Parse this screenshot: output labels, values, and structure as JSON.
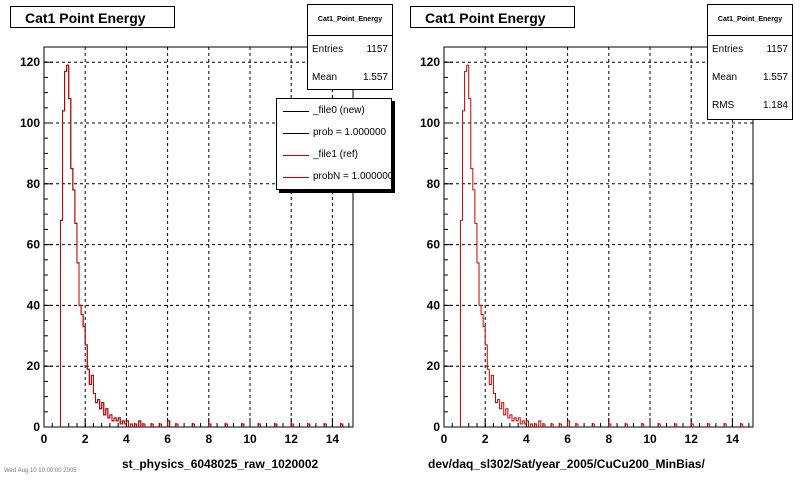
{
  "panels": [
    {
      "title": "Cat1 Point Energy",
      "stats": {
        "name": "Cat1_Point_Energy",
        "rows": [
          {
            "label": "Entries",
            "value": "1157"
          },
          {
            "label": "Mean",
            "value": "1.557"
          }
        ]
      },
      "legend": [
        {
          "label": "_file0 (new)",
          "color": "#000000"
        },
        {
          "label": "prob = 1.000000",
          "color": "#000000"
        },
        {
          "label": "_file1 (ref)",
          "color": "#cc0000"
        },
        {
          "label": "probN = 1.000000",
          "color": "#cc0000"
        }
      ],
      "xtitle": "st_physics_6048025_raw_1020002"
    },
    {
      "title": "Cat1 Point Energy",
      "stats": {
        "name": "Cat1_Point_Energy",
        "rows": [
          {
            "label": "Entries",
            "value": "1157"
          },
          {
            "label": "Mean",
            "value": "1.557"
          },
          {
            "label": "RMS",
            "value": "1.184"
          }
        ]
      },
      "xtitle": "dev/daq_sl302/Sat/year_2005/CuCu200_MinBias/"
    }
  ],
  "footer_text": "Wed Aug 10 10:00:00 2005",
  "chart_data": [
    {
      "type": "bar",
      "title": "Cat1 Point Energy",
      "xlabel": "st_physics_6048025_raw_1020002",
      "ylabel": "",
      "xlim": [
        0,
        15
      ],
      "ylim": [
        0,
        125
      ],
      "xticks": [
        0,
        2,
        4,
        6,
        8,
        10,
        12,
        14
      ],
      "yticks": [
        0,
        20,
        40,
        60,
        80,
        100,
        120
      ],
      "grid": true,
      "bin_width": 0.1,
      "series": [
        {
          "name": "_file0 (new)",
          "color": "#000000",
          "x": [
            0.8,
            0.9,
            1.0,
            1.1,
            1.2,
            1.3,
            1.4,
            1.5,
            1.6,
            1.7,
            1.8,
            1.9,
            2.0,
            2.1,
            2.2,
            2.3,
            2.4,
            2.5,
            2.6,
            2.7,
            2.8,
            2.9,
            3.0,
            3.1,
            3.2,
            3.3,
            3.4,
            3.5,
            3.6,
            3.7,
            3.8,
            3.9,
            4.0,
            4.2,
            4.4,
            4.6,
            4.8,
            5.2,
            5.6,
            6.0,
            6.4,
            7.2,
            8.0,
            8.8,
            9.6,
            10.4,
            11.2,
            12.0,
            12.8,
            13.6,
            14.4
          ],
          "values": [
            68,
            104,
            117,
            119,
            108,
            85,
            78,
            67,
            54,
            40,
            37,
            33,
            27,
            19,
            14,
            17,
            11,
            8,
            9,
            6,
            8,
            4,
            6,
            3,
            4,
            2,
            3,
            2,
            3,
            1,
            2,
            1,
            2,
            1,
            1,
            2,
            1,
            1,
            1,
            2,
            1,
            1,
            1,
            1,
            1,
            1,
            1,
            1,
            1,
            1,
            1
          ]
        },
        {
          "name": "_file1 (ref)",
          "color": "#cc0000",
          "x": [
            0.8,
            0.9,
            1.0,
            1.1,
            1.2,
            1.3,
            1.4,
            1.5,
            1.6,
            1.7,
            1.8,
            1.9,
            2.0,
            2.1,
            2.2,
            2.3,
            2.4,
            2.5,
            2.6,
            2.7,
            2.8,
            2.9,
            3.0,
            3.1,
            3.2,
            3.3,
            3.4,
            3.5,
            3.6,
            3.7,
            3.8,
            3.9,
            4.0,
            4.2,
            4.4,
            4.6,
            4.8,
            5.2,
            5.6,
            6.0,
            6.4,
            7.2,
            8.0,
            8.8,
            9.6,
            10.4,
            11.2,
            12.0,
            12.8,
            13.6,
            14.4
          ],
          "values": [
            68,
            104,
            117,
            119,
            108,
            85,
            78,
            67,
            54,
            40,
            37,
            33,
            27,
            19,
            14,
            17,
            11,
            8,
            9,
            6,
            8,
            4,
            6,
            3,
            4,
            2,
            3,
            2,
            3,
            1,
            2,
            1,
            2,
            1,
            1,
            2,
            1,
            1,
            1,
            2,
            1,
            1,
            1,
            1,
            1,
            1,
            1,
            1,
            1,
            1,
            1
          ]
        }
      ]
    },
    {
      "type": "bar",
      "title": "Cat1 Point Energy",
      "xlabel": "dev/daq_sl302/Sat/year_2005/CuCu200_MinBias/",
      "ylabel": "",
      "xlim": [
        0,
        15
      ],
      "ylim": [
        0,
        125
      ],
      "xticks": [
        0,
        2,
        4,
        6,
        8,
        10,
        12,
        14
      ],
      "yticks": [
        0,
        20,
        40,
        60,
        80,
        100,
        120
      ],
      "grid": true,
      "bin_width": 0.1,
      "series": [
        {
          "name": "",
          "color": "#cc0000",
          "x": [
            0.8,
            0.9,
            1.0,
            1.1,
            1.2,
            1.3,
            1.4,
            1.5,
            1.6,
            1.7,
            1.8,
            1.9,
            2.0,
            2.1,
            2.2,
            2.3,
            2.4,
            2.5,
            2.6,
            2.7,
            2.8,
            2.9,
            3.0,
            3.1,
            3.2,
            3.3,
            3.4,
            3.5,
            3.6,
            3.7,
            3.8,
            3.9,
            4.0,
            4.2,
            4.4,
            4.6,
            4.8,
            5.2,
            5.6,
            6.0,
            6.4,
            7.2,
            8.0,
            8.8,
            9.6,
            10.4,
            11.2,
            12.0,
            12.8,
            13.6,
            14.4
          ],
          "values": [
            68,
            104,
            117,
            119,
            108,
            85,
            78,
            67,
            54,
            40,
            37,
            33,
            27,
            19,
            14,
            17,
            11,
            8,
            9,
            6,
            8,
            4,
            6,
            3,
            4,
            2,
            3,
            2,
            3,
            1,
            2,
            1,
            2,
            1,
            1,
            2,
            1,
            1,
            1,
            2,
            1,
            1,
            1,
            1,
            1,
            1,
            1,
            1,
            1,
            1,
            1
          ]
        }
      ]
    }
  ]
}
